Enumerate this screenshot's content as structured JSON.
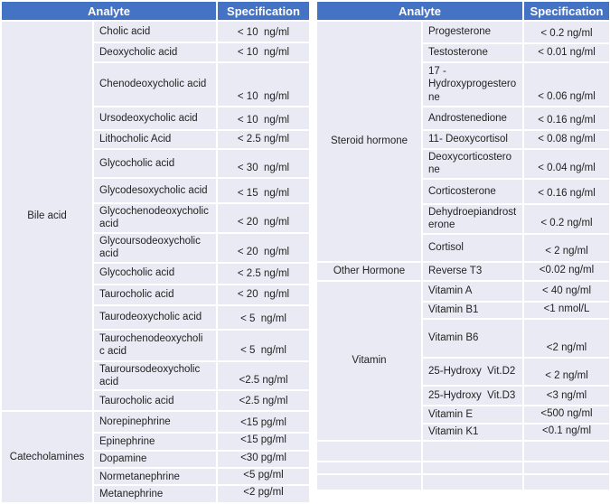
{
  "colors": {
    "header_bg": "#4472C4",
    "header_text": "#FFFFFF",
    "cell_bg": "#E9EAF3",
    "divider": "#FFFFFF",
    "body_text": "#232323"
  },
  "left_table": {
    "headers": {
      "analyte": "Analyte",
      "specification": "Specification"
    },
    "sections": [
      {
        "category": "Bile acid",
        "rows": [
          {
            "analyte": "Cholic acid",
            "spec": "< 10  ng/ml"
          },
          {
            "analyte": "Deoxycholic acid",
            "spec": "< 10  ng/ml"
          },
          {
            "analyte": "Chenodeoxycholic acid",
            "spec": "< 10  ng/ml"
          },
          {
            "analyte": "Ursodeoxycholic acid",
            "spec": "< 10  ng/ml"
          },
          {
            "analyte": "Lithocholic Acid",
            "spec": "< 2.5 ng/ml"
          },
          {
            "analyte": "Glycocholic acid",
            "spec": "< 30  ng/ml"
          },
          {
            "analyte": "Glycodesoxycholic acid",
            "spec": "< 15  ng/ml"
          },
          {
            "analyte": "Glycochenodeoxycholic\nacid",
            "spec": "< 20  ng/ml"
          },
          {
            "analyte": "Glycoursodeoxycholic\nacid",
            "spec": "< 20  ng/ml"
          },
          {
            "analyte": "Glycocholic acid",
            "spec": "< 2.5 ng/ml"
          },
          {
            "analyte": "Taurocholic acid",
            "spec": "< 20  ng/ml"
          },
          {
            "analyte": "Taurodeoxycholic acid",
            "spec": "< 5  ng/ml"
          },
          {
            "analyte": "Taurochenodeoxycholi\nc acid",
            "spec": "< 5  ng/ml"
          },
          {
            "analyte": "Tauroursodeoxycholic\nacid",
            "spec": "<2.5 ng/ml"
          },
          {
            "analyte": "Taurocholic acid",
            "spec": "<2.5 ng/ml"
          }
        ]
      },
      {
        "category": "Catecholamines",
        "rows": [
          {
            "analyte": "Norepinephrine",
            "spec": "<15 pg/ml"
          },
          {
            "analyte": "Epinephrine",
            "spec": "<15 pg/ml"
          },
          {
            "analyte": "Dopamine",
            "spec": "<30 pg/ml"
          },
          {
            "analyte": "Normetanephrine",
            "spec": "<5 pg/ml"
          },
          {
            "analyte": "Metanephrine",
            "spec": "<2 pg/ml"
          }
        ]
      }
    ]
  },
  "right_table": {
    "headers": {
      "analyte": "Analyte",
      "specification": "Specification"
    },
    "sections": [
      {
        "category": "Steroid hormone",
        "rows": [
          {
            "analyte": "Progesterone",
            "spec": "< 0.2 ng/ml"
          },
          {
            "analyte": "Testosterone",
            "spec": "< 0.01 ng/ml"
          },
          {
            "analyte": "17 -\nHydroxyprogestero\nne",
            "spec": "< 0.06 ng/ml"
          },
          {
            "analyte": "Androstenedione",
            "spec": "< 0.16 ng/ml"
          },
          {
            "analyte": "11- Deoxycortisol",
            "spec": "< 0.08 ng/ml"
          },
          {
            "analyte": "Deoxycorticostero\nne",
            "spec": "< 0.04 ng/ml"
          },
          {
            "analyte": "Corticosterone",
            "spec": "< 0.16 ng/ml"
          },
          {
            "analyte": "Dehydroepiandrost\nerone",
            "spec": "< 0.2 ng/ml"
          },
          {
            "analyte": "Cortisol",
            "spec": "< 2 ng/ml"
          }
        ]
      },
      {
        "category": "Other Hormone",
        "rows": [
          {
            "analyte": "Reverse T3",
            "spec": "<0.02 ng/ml"
          }
        ]
      },
      {
        "category": "Vitamin",
        "rows": [
          {
            "analyte": "Vitamin A",
            "spec": "< 40 ng/ml"
          },
          {
            "analyte": "Vitamin B1",
            "spec": "<1 nmol/L"
          },
          {
            "analyte": "Vitamin B6",
            "spec": "<2 ng/ml"
          },
          {
            "analyte": "25-Hydroxy  Vit.D2",
            "spec": "< 2 ng/ml"
          },
          {
            "analyte": "25-Hydroxy  Vit.D3",
            "spec": "<3 ng/ml"
          },
          {
            "analyte": "Vitamin E",
            "spec": "<500 ng/ml"
          },
          {
            "analyte": "Vitamin K1",
            "spec": "<0.1 ng/ml"
          }
        ]
      },
      {
        "category": "",
        "rows": [
          {
            "analyte": "",
            "spec": ""
          },
          {
            "analyte": "",
            "spec": ""
          },
          {
            "analyte": "",
            "spec": ""
          }
        ]
      }
    ]
  }
}
